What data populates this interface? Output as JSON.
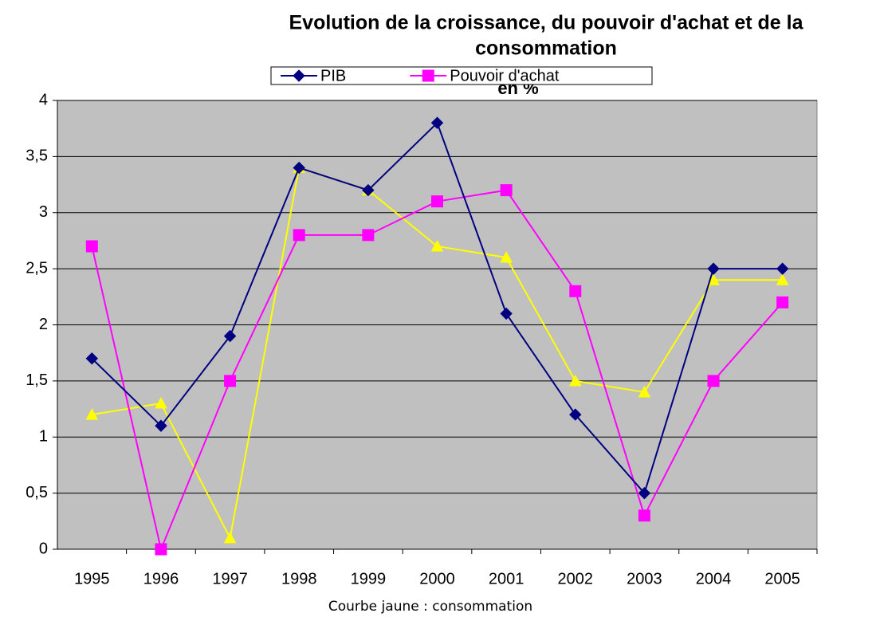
{
  "chart_data": {
    "type": "line",
    "title_lines": [
      "Evolution de la croissance, du pouvoir d'achat et de la",
      "consommation"
    ],
    "subtitle": "en %",
    "annotation": "Courbe jaune : consommation",
    "categories": [
      "1995",
      "1996",
      "1997",
      "1998",
      "1999",
      "2000",
      "2001",
      "2002",
      "2003",
      "2004",
      "2005"
    ],
    "series": [
      {
        "name": "PIB",
        "color": "#000080",
        "marker": "diamond",
        "values": [
          1.7,
          1.1,
          1.9,
          3.4,
          3.2,
          3.8,
          2.1,
          1.2,
          0.5,
          2.5,
          2.5
        ]
      },
      {
        "name": "Pouvoir d'achat",
        "color": "#ff00ff",
        "marker": "square",
        "values": [
          2.7,
          0,
          1.5,
          2.8,
          2.8,
          3.1,
          3.2,
          2.3,
          0.3,
          1.5,
          2.2
        ]
      },
      {
        "color": "#ffff00",
        "marker": "triangle",
        "values": [
          1.2,
          1.3,
          0.1,
          3.4,
          3.2,
          2.7,
          2.6,
          1.5,
          1.4,
          2.4,
          2.4
        ]
      }
    ],
    "ylim": [
      0,
      4
    ],
    "yticks": [
      0,
      {
        "value": 0.5,
        "label": "0,5"
      },
      1,
      {
        "value": 1.5,
        "label": "1,5"
      },
      2,
      {
        "value": 2.5,
        "label": "2,5"
      },
      3,
      {
        "value": 3.5,
        "label": "3,5"
      },
      4
    ],
    "grid": true,
    "plot_background": "#c0c0c0"
  }
}
